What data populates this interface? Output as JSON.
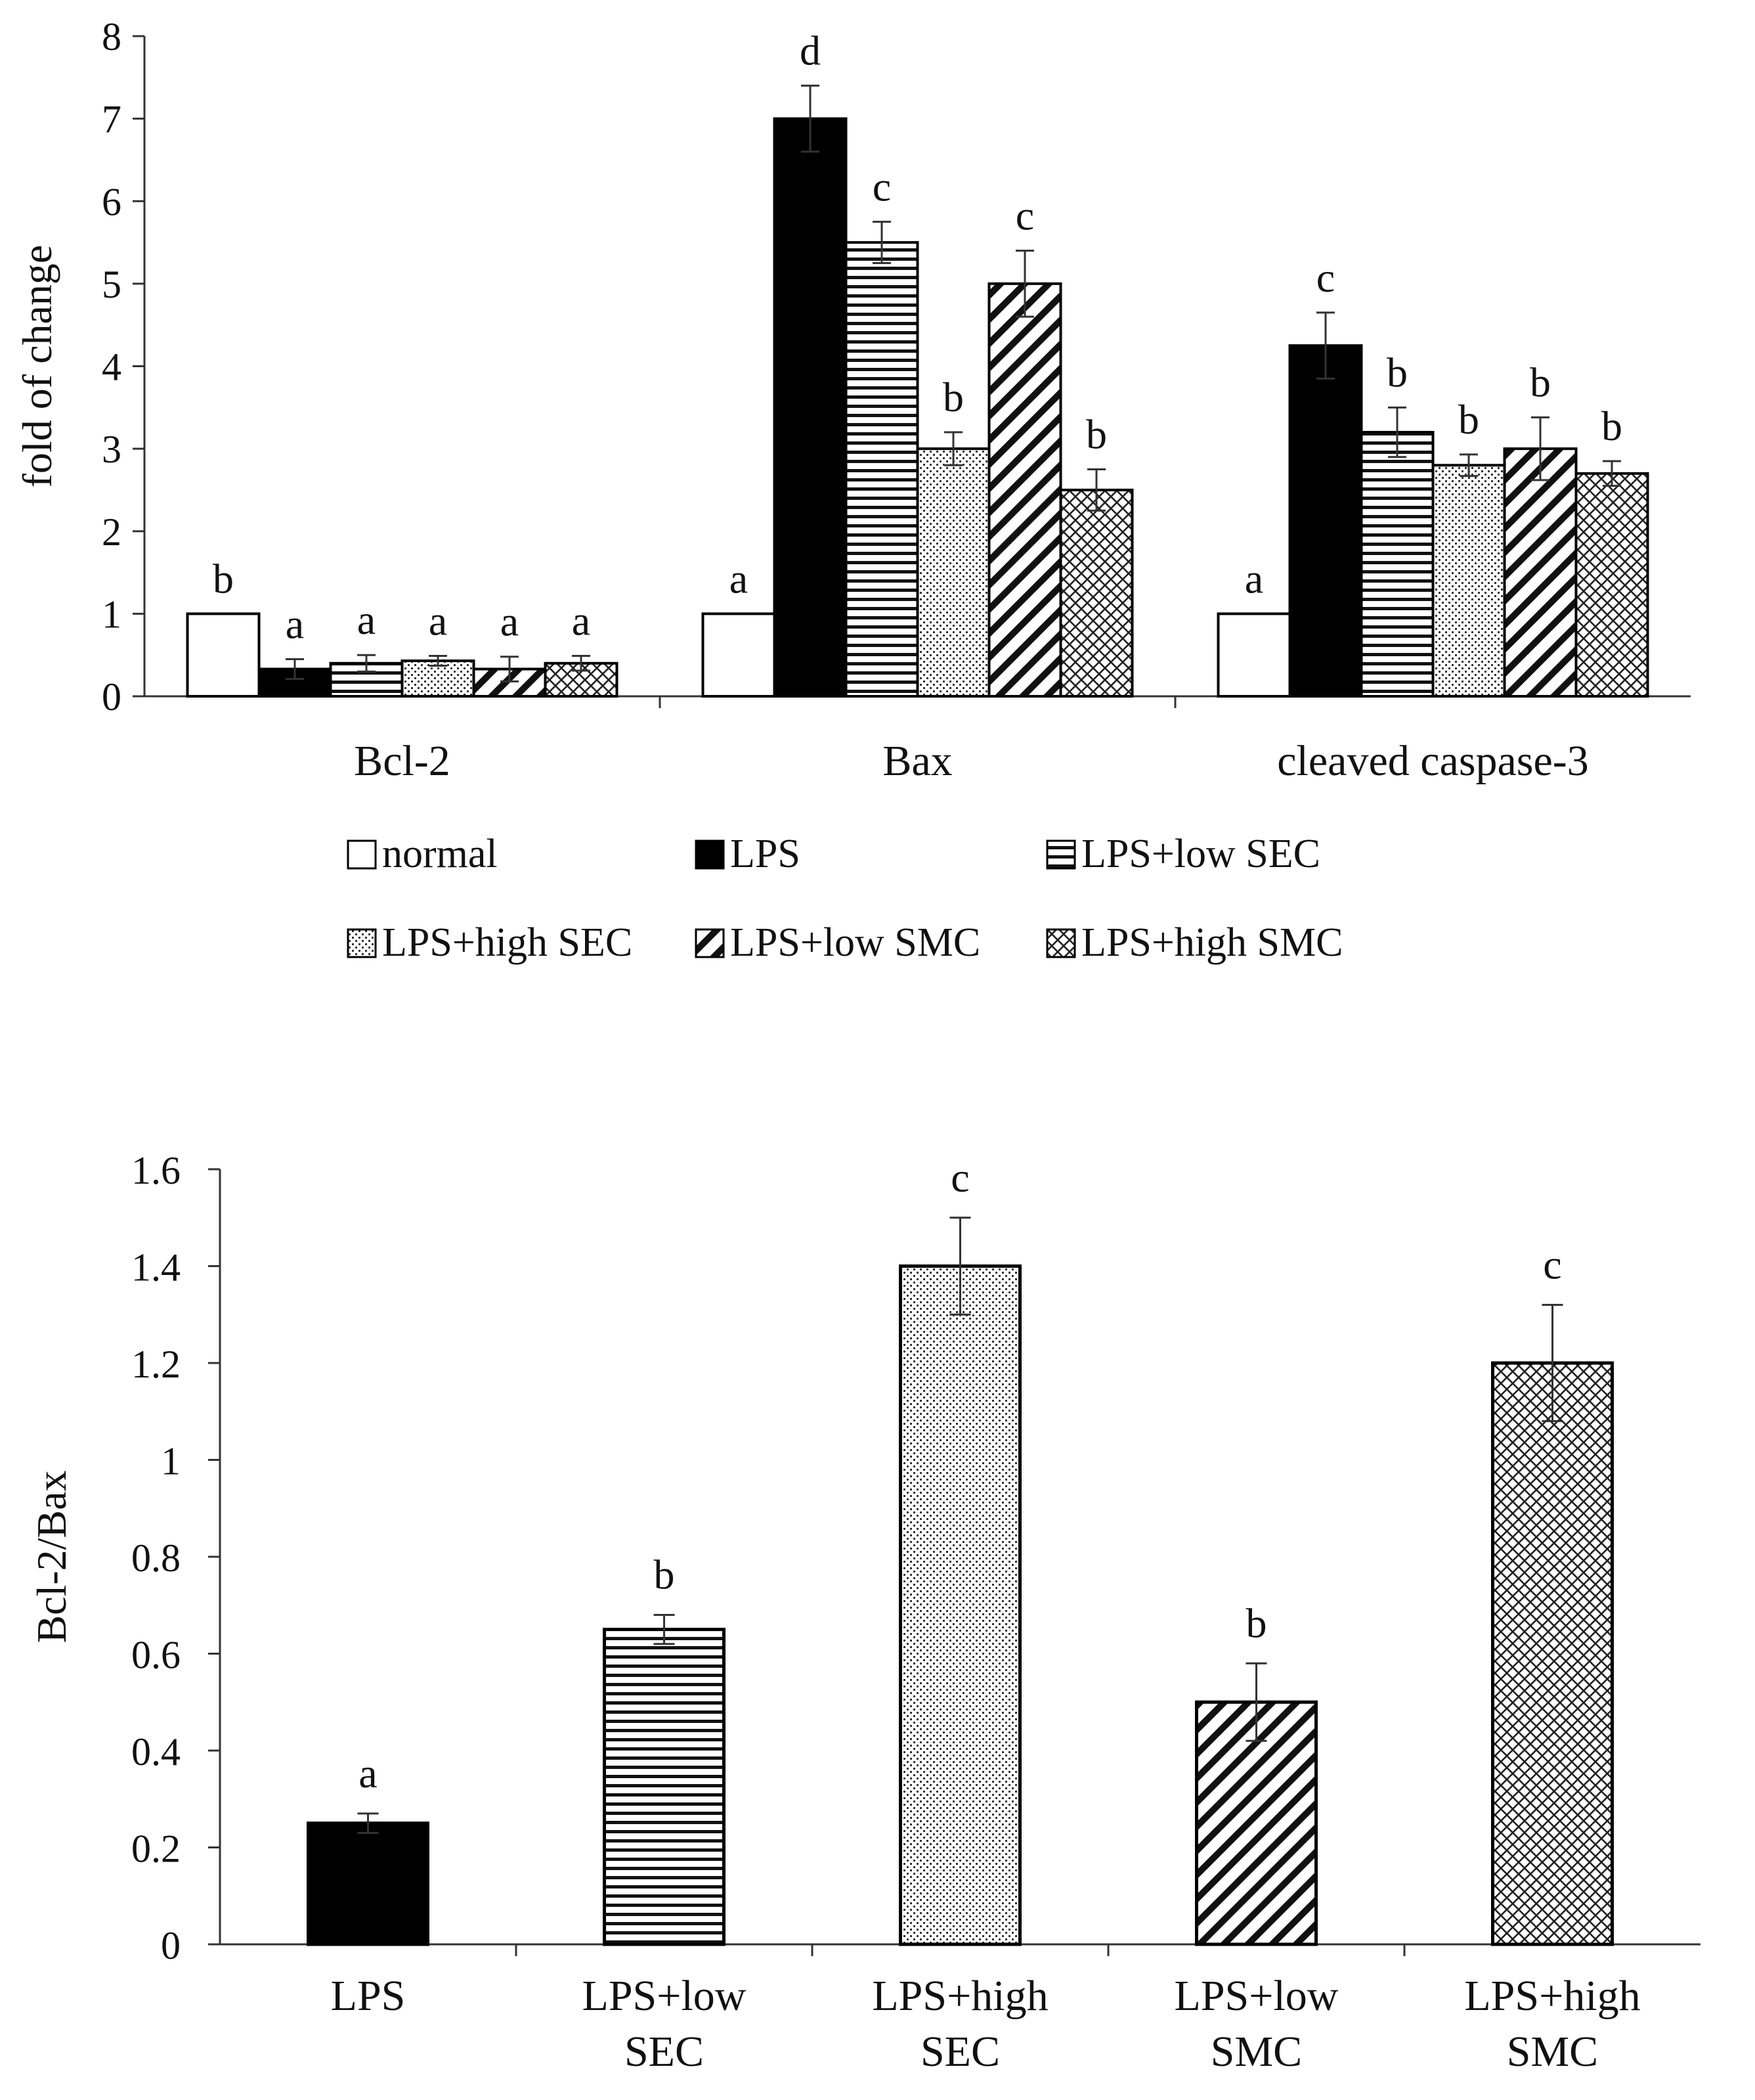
{
  "chart_data": [
    {
      "type": "bar",
      "title": "",
      "xlabel": "",
      "ylabel": "fold of change",
      "ylim": [
        0,
        8
      ],
      "yticks": [
        "0",
        "1",
        "2",
        "3",
        "4",
        "5",
        "6",
        "7",
        "8"
      ],
      "grid": false,
      "legend_position": "bottom",
      "categories": [
        "Bcl-2",
        "Bax",
        "cleaved caspase-3"
      ],
      "series": [
        {
          "name": "normal",
          "pattern": "white",
          "values": [
            1.0,
            1.0,
            1.0
          ],
          "errors": [
            0,
            0,
            0
          ],
          "letters": [
            "b",
            "a",
            "a"
          ]
        },
        {
          "name": "LPS",
          "pattern": "solid",
          "values": [
            0.33,
            7.0,
            4.25
          ],
          "errors": [
            0.12,
            0.4,
            0.4
          ],
          "letters": [
            "a",
            "d",
            "c"
          ]
        },
        {
          "name": "LPS+low SEC",
          "pattern": "hlines",
          "values": [
            0.4,
            5.5,
            3.2
          ],
          "errors": [
            0.1,
            0.25,
            0.3
          ],
          "letters": [
            "a",
            "c",
            "b"
          ]
        },
        {
          "name": "LPS+high SEC",
          "pattern": "dots",
          "values": [
            0.43,
            3.0,
            2.8
          ],
          "errors": [
            0.06,
            0.2,
            0.13
          ],
          "letters": [
            "a",
            "b",
            "b"
          ]
        },
        {
          "name": "LPS+low SMC",
          "pattern": "diag",
          "values": [
            0.33,
            5.0,
            3.0
          ],
          "errors": [
            0.15,
            0.4,
            0.38
          ],
          "letters": [
            "a",
            "c",
            "b"
          ]
        },
        {
          "name": "LPS+high SMC",
          "pattern": "cross",
          "values": [
            0.4,
            2.5,
            2.7
          ],
          "errors": [
            0.09,
            0.25,
            0.15
          ],
          "letters": [
            "a",
            "b",
            "b"
          ]
        }
      ]
    },
    {
      "type": "bar",
      "title": "",
      "xlabel": "",
      "ylabel": "Bcl-2/Bax",
      "ylim": [
        0,
        1.6
      ],
      "yticks": [
        "0",
        "0.2",
        "0.4",
        "0.6",
        "0.8",
        "1",
        "1.2",
        "1.4",
        "1.6"
      ],
      "grid": false,
      "categories": [
        {
          "line1": "LPS",
          "line2": ""
        },
        {
          "line1": "LPS+low",
          "line2": "SEC"
        },
        {
          "line1": "LPS+high",
          "line2": "SEC"
        },
        {
          "line1": "LPS+low",
          "line2": "SMC"
        },
        {
          "line1": "LPS+high",
          "line2": "SMC"
        }
      ],
      "patterns": [
        "solid",
        "hlines",
        "dots",
        "diag",
        "cross"
      ],
      "values": [
        0.25,
        0.65,
        1.4,
        0.5,
        1.2
      ],
      "errors": [
        0.02,
        0.03,
        0.1,
        0.08,
        0.12
      ],
      "letters": [
        "a",
        "b",
        "c",
        "b",
        "c"
      ]
    }
  ]
}
